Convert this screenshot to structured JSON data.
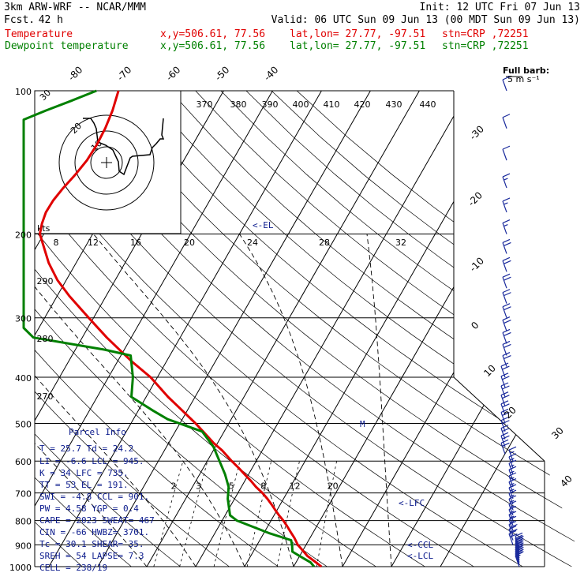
{
  "header": {
    "model": "3km ARW-WRF -- NCAR/MMM",
    "init": "Init: 12 UTC Fri 07 Jun 13",
    "fcst_label": "Fcst.",
    "fcst_value": "42 h",
    "valid": "Valid: 06 UTC Sun 09 Jun 13 (00 MDT Sun 09 Jun 13)",
    "temperature_label": "Temperature",
    "dewpoint_label": "Dewpoint temperature",
    "xy": "x,y=506.61, 77.56",
    "latlon": "lat,lon= 27.77, -97.51",
    "stn": "stn=CRP ,72251"
  },
  "colors": {
    "temperature": "#e00000",
    "dewpoint": "#008000",
    "wind": "#1a2a9c",
    "parcel_text": "#0a1a8c"
  },
  "barb_legend": {
    "line1": "Full barb:",
    "line2": "5 m s⁻¹"
  },
  "annotations": {
    "el": "<-EL",
    "lfc": "<-LFC",
    "ccl": "<-CCL",
    "lcl": "<-LCL",
    "m_marker": "M"
  },
  "hodograph": {
    "units": "kts",
    "speed_labels": [
      "8",
      "12",
      "16",
      "20",
      "24",
      "28",
      "32"
    ],
    "ring_labels": [
      "10",
      "20",
      "30"
    ]
  },
  "parcel_info": {
    "title": "Parcel Info",
    "rows": [
      "T  =   25.7  Td =  24.2",
      "LI =   -6.6  LCL =  945.",
      "K  =     34  LFC =  735.",
      "TT =     53  EL  =  191.",
      "SWI =  -4.8  CCL =  901.",
      "PW =   4.58  YGP =   0.4",
      "CAPE =  2023  SWEAT=  467",
      "CIN =   -66  HWBZ= 3701.",
      "Tc =   30.1  SHEAR=  35.",
      "SREH =   54  LAPSE=  7.3",
      "CELL = 238/19"
    ]
  },
  "chart_data": {
    "type": "line",
    "title": "",
    "xlabel": "",
    "ylabel": "",
    "y_scale": "log-pressure",
    "ylim": [
      1000,
      100
    ],
    "pressure_levels": [
      "100",
      "200",
      "300",
      "400",
      "500",
      "600",
      "700",
      "800",
      "900",
      "1000"
    ],
    "top_isotherm_labels": [
      "-80",
      "-70",
      "-60",
      "-50",
      "-40"
    ],
    "right_isotherm_labels": [
      "-30",
      "-20",
      "-10",
      "0",
      "10",
      "20",
      "30",
      "40"
    ],
    "theta_labels": [
      "370",
      "380",
      "390",
      "400",
      "410",
      "420",
      "430",
      "440"
    ],
    "theta_e_labels": [
      "290",
      "280",
      "270"
    ],
    "mixing_ratio_labels": [
      "2",
      "3",
      "5",
      "8",
      "12",
      "20"
    ],
    "series": [
      {
        "name": "Temperature",
        "pressure": [
          1000,
          985,
          950,
          925,
          900,
          870,
          850,
          820,
          800,
          780,
          760,
          740,
          720,
          700,
          680,
          660,
          640,
          620,
          600,
          570,
          550,
          520,
          500,
          470,
          440,
          400,
          370,
          350,
          330,
          300,
          270,
          250,
          230,
          200,
          190,
          180,
          170,
          160,
          150,
          140,
          130,
          120,
          110,
          100
        ],
        "temperature_c": [
          25.7,
          24.5,
          21.6,
          20.0,
          18.3,
          16.8,
          15.6,
          13.8,
          12.5,
          11.0,
          9.6,
          8.2,
          6.7,
          5.0,
          3.0,
          1.2,
          -0.8,
          -2.8,
          -5.0,
          -8.2,
          -10.8,
          -14.3,
          -16.8,
          -21.0,
          -25.5,
          -31.4,
          -37.2,
          -41.0,
          -45.0,
          -51.0,
          -57.5,
          -61.8,
          -65.6,
          -70.8,
          -71.6,
          -72.1,
          -72.0,
          -71.4,
          -70.5,
          -69.8,
          -69.6,
          -69.8,
          -70.4,
          -71.5
        ]
      },
      {
        "name": "Dewpoint temperature",
        "pressure": [
          1000,
          980,
          950,
          930,
          905,
          880,
          850,
          800,
          780,
          720,
          680,
          640,
          600,
          560,
          520,
          490,
          470,
          440,
          400,
          360,
          350,
          330,
          315,
          310,
          300,
          280,
          260,
          240,
          220,
          200,
          180,
          160,
          150,
          140,
          130,
          125,
          120,
          115,
          110,
          105,
          100
        ],
        "temperature_c": [
          24.2,
          23.0,
          20.0,
          18.0,
          17.3,
          16.4,
          11.0,
          3.0,
          1.0,
          -1.4,
          -2.6,
          -4.8,
          -7.5,
          -10.4,
          -14.5,
          -23.0,
          -27.0,
          -33.0,
          -35.0,
          -38.0,
          -44.0,
          -60.0,
          -80.0,
          -93.0,
          -93.0,
          -93.0,
          -83.0,
          -78.0,
          -78.0,
          -79.0,
          -80.5,
          -83.0,
          -86.0,
          -90.0,
          -92.0,
          -92.0,
          -91.0,
          -88.0,
          -84.0,
          -80.0,
          -76.0
        ]
      }
    ],
    "wind_barbs": {
      "pressure": [
        1000,
        990,
        980,
        970,
        960,
        950,
        940,
        930,
        920,
        910,
        900,
        880,
        860,
        840,
        820,
        800,
        780,
        760,
        740,
        720,
        700,
        680,
        660,
        640,
        620,
        600,
        580,
        560,
        540,
        520,
        500,
        480,
        460,
        440,
        420,
        400,
        380,
        360,
        340,
        320,
        300,
        280,
        260,
        240,
        220,
        200,
        180,
        160,
        140,
        120,
        100
      ],
      "speed_ms": [
        7,
        9,
        11,
        12,
        12,
        12,
        12,
        12,
        11,
        11,
        10,
        10,
        10,
        9,
        9,
        9,
        9,
        9,
        9,
        9,
        9,
        9,
        9,
        9,
        9,
        9,
        10,
        10,
        10,
        10,
        10,
        10,
        10,
        10,
        10,
        10,
        10,
        10,
        10,
        10,
        10,
        10,
        10,
        10,
        10,
        9,
        8,
        8,
        7,
        6,
        5
      ]
    }
  }
}
